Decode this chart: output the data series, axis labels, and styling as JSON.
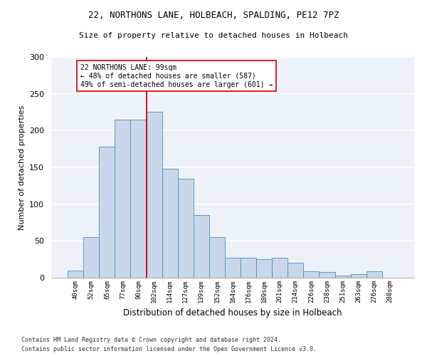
{
  "title_line1": "22, NORTHONS LANE, HOLBEACH, SPALDING, PE12 7PZ",
  "title_line2": "Size of property relative to detached houses in Holbeach",
  "xlabel": "Distribution of detached houses by size in Holbeach",
  "ylabel": "Number of detached properties",
  "bar_color": "#c8d8ea",
  "bar_edge_color": "#5588bb",
  "categories": [
    "40sqm",
    "52sqm",
    "65sqm",
    "77sqm",
    "90sqm",
    "102sqm",
    "114sqm",
    "127sqm",
    "139sqm",
    "152sqm",
    "164sqm",
    "176sqm",
    "189sqm",
    "201sqm",
    "214sqm",
    "226sqm",
    "238sqm",
    "251sqm",
    "263sqm",
    "276sqm",
    "288sqm"
  ],
  "values": [
    10,
    55,
    178,
    215,
    215,
    225,
    148,
    135,
    85,
    55,
    27,
    27,
    25,
    27,
    20,
    9,
    8,
    3,
    5,
    9,
    0
  ],
  "vline_index": 5,
  "vline_color": "#cc0000",
  "annotation_text": "22 NORTHONS LANE: 99sqm\n← 48% of detached houses are smaller (587)\n49% of semi-detached houses are larger (601) →",
  "annotation_box_color": "white",
  "annotation_box_edge": "#cc0000",
  "footnote1": "Contains HM Land Registry data © Crown copyright and database right 2024.",
  "footnote2": "Contains public sector information licensed under the Open Government Licence v3.0.",
  "ylim": [
    0,
    300
  ],
  "yticks": [
    0,
    50,
    100,
    150,
    200,
    250,
    300
  ],
  "background_color": "#edf2f8"
}
